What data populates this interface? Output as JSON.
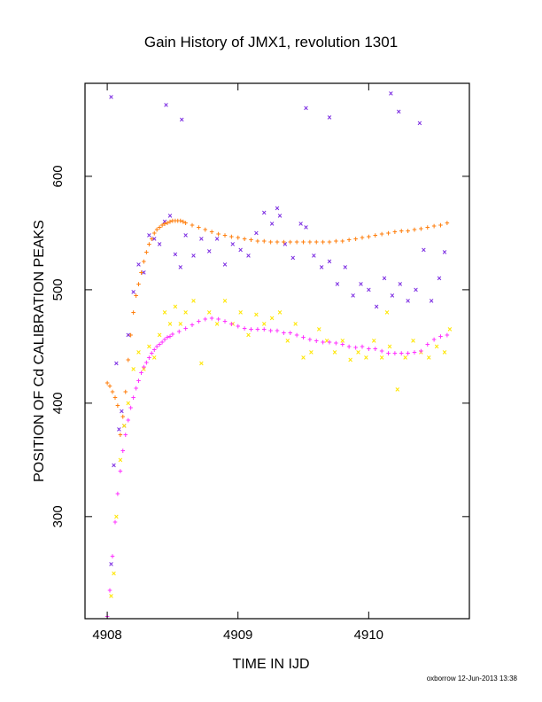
{
  "chart_data": {
    "type": "scatter",
    "title": "Gain History of JMX1, revolution 1301",
    "xlabel": "TIME IN IJD",
    "ylabel": "POSITION OF Cd CALIBRATION PEAKS",
    "xlim": [
      4907.83,
      4910.77
    ],
    "ylim": [
      210,
      682
    ],
    "xticks": [
      4908,
      4909,
      4910
    ],
    "xtick_labels": [
      "4908",
      "4909",
      "4910"
    ],
    "yticks": [
      300,
      400,
      500,
      600
    ],
    "ytick_labels": [
      "300",
      "400",
      "500",
      "600"
    ],
    "grid": false,
    "legend": "none",
    "credit": "oxborrow 12-Jun-2013 13:38",
    "series": [
      {
        "marker": "x",
        "color": "#7b2be2",
        "x": [
          4908.03,
          4908.05,
          4908.07,
          4908.09,
          4908.11,
          4908.13,
          4908.16,
          4908.2,
          4908.24,
          4908.28,
          4908.32,
          4908.36,
          4908.4,
          4908.44,
          4908.48,
          4908.52,
          4908.56,
          4908.6,
          4908.66,
          4908.72,
          4908.78,
          4908.84,
          4908.9,
          4908.96,
          4909.02,
          4909.08,
          4909.14,
          4909.2,
          4909.26,
          4909.3,
          4909.32,
          4909.36,
          4909.42,
          4909.48,
          4909.52,
          4909.58,
          4909.64,
          4909.7,
          4909.76,
          4909.82,
          4909.88,
          4909.94,
          4910.0,
          4910.06,
          4910.12,
          4910.18,
          4910.24,
          4910.3,
          4910.36,
          4910.42,
          4910.48,
          4910.54,
          4910.58,
          4908.03,
          4908.45,
          4908.57,
          4909.52,
          4909.7,
          4910.23,
          4910.17,
          4910.39
        ],
        "y": [
          258,
          345,
          435,
          377,
          393,
          380,
          460,
          498,
          522,
          515,
          548,
          545,
          540,
          560,
          565,
          531,
          520,
          548,
          530,
          545,
          534,
          545,
          522,
          540,
          535,
          530,
          550,
          568,
          558,
          572,
          565,
          540,
          528,
          558,
          555,
          530,
          520,
          525,
          505,
          520,
          495,
          505,
          500,
          485,
          510,
          495,
          505,
          490,
          500,
          535,
          490,
          510,
          533,
          670,
          663,
          650,
          660,
          652,
          657,
          673,
          647
        ]
      },
      {
        "marker": "x",
        "color": "#ffe600",
        "x": [
          4908.03,
          4908.05,
          4908.07,
          4908.1,
          4908.13,
          4908.16,
          4908.2,
          4908.24,
          4908.28,
          4908.32,
          4908.36,
          4908.4,
          4908.44,
          4908.48,
          4908.52,
          4908.56,
          4908.6,
          4908.66,
          4908.72,
          4908.78,
          4908.84,
          4908.9,
          4908.96,
          4909.02,
          4909.08,
          4909.14,
          4909.2,
          4909.26,
          4909.32,
          4909.38,
          4909.44,
          4909.5,
          4909.56,
          4909.62,
          4909.68,
          4909.74,
          4909.8,
          4909.86,
          4909.92,
          4909.98,
          4910.04,
          4910.1,
          4910.16,
          4910.22,
          4910.28,
          4910.34,
          4910.4,
          4910.46,
          4910.52,
          4910.58,
          4910.62,
          4910.14
        ],
        "y": [
          230,
          250,
          300,
          350,
          380,
          400,
          430,
          445,
          430,
          450,
          440,
          460,
          480,
          470,
          485,
          470,
          480,
          490,
          435,
          480,
          470,
          490,
          470,
          480,
          460,
          478,
          470,
          475,
          480,
          455,
          470,
          440,
          445,
          465,
          455,
          445,
          455,
          438,
          445,
          440,
          455,
          440,
          450,
          412,
          440,
          455,
          445,
          440,
          450,
          445,
          465,
          480
        ]
      },
      {
        "marker": "+",
        "color": "#ff7f0e",
        "x": [
          4908.0,
          4908.02,
          4908.04,
          4908.06,
          4908.08,
          4908.1,
          4908.12,
          4908.14,
          4908.16,
          4908.18,
          4908.2,
          4908.22,
          4908.24,
          4908.26,
          4908.28,
          4908.3,
          4908.32,
          4908.34,
          4908.36,
          4908.38,
          4908.4,
          4908.42,
          4908.44,
          4908.46,
          4908.48,
          4908.5,
          4908.52,
          4908.54,
          4908.56,
          4908.58,
          4908.6,
          4908.65,
          4908.7,
          4908.75,
          4908.8,
          4908.85,
          4908.9,
          4908.95,
          4909.0,
          4909.05,
          4909.1,
          4909.15,
          4909.2,
          4909.25,
          4909.3,
          4909.35,
          4909.4,
          4909.45,
          4909.5,
          4909.55,
          4909.6,
          4909.65,
          4909.7,
          4909.75,
          4909.8,
          4909.85,
          4909.9,
          4909.95,
          4910.0,
          4910.05,
          4910.1,
          4910.15,
          4910.2,
          4910.25,
          4910.3,
          4910.35,
          4910.4,
          4910.45,
          4910.5,
          4910.55,
          4910.6
        ],
        "y": [
          418,
          415,
          410,
          405,
          398,
          372,
          388,
          410,
          438,
          460,
          480,
          495,
          505,
          515,
          525,
          533,
          540,
          545,
          550,
          553,
          555,
          557,
          558,
          559,
          560,
          561,
          561,
          561,
          561,
          560,
          559,
          557,
          555,
          553,
          551,
          549,
          548,
          547,
          546,
          545,
          544,
          543,
          543,
          542,
          542,
          542,
          542,
          542,
          542,
          542,
          542,
          542,
          542,
          543,
          543,
          544,
          545,
          546,
          547,
          548,
          549,
          550,
          551,
          552,
          552,
          553,
          554,
          555,
          556,
          557,
          559
        ]
      },
      {
        "marker": "+",
        "color": "#ff33ff",
        "x": [
          4908.0,
          4908.02,
          4908.04,
          4908.06,
          4908.08,
          4908.1,
          4908.12,
          4908.14,
          4908.16,
          4908.18,
          4908.2,
          4908.22,
          4908.24,
          4908.26,
          4908.28,
          4908.3,
          4908.32,
          4908.34,
          4908.36,
          4908.38,
          4908.4,
          4908.42,
          4908.44,
          4908.46,
          4908.48,
          4908.5,
          4908.55,
          4908.6,
          4908.65,
          4908.7,
          4908.75,
          4908.8,
          4908.85,
          4908.9,
          4908.95,
          4909.0,
          4909.05,
          4909.1,
          4909.15,
          4909.2,
          4909.25,
          4909.3,
          4909.35,
          4909.4,
          4909.45,
          4909.5,
          4909.55,
          4909.6,
          4909.65,
          4909.7,
          4909.75,
          4909.8,
          4909.85,
          4909.9,
          4909.95,
          4910.0,
          4910.05,
          4910.1,
          4910.15,
          4910.2,
          4910.25,
          4910.3,
          4910.35,
          4910.4,
          4910.45,
          4910.5,
          4910.55,
          4910.6
        ],
        "y": [
          212,
          235,
          265,
          295,
          320,
          340,
          358,
          372,
          385,
          396,
          405,
          413,
          420,
          427,
          432,
          436,
          440,
          444,
          447,
          450,
          452,
          454,
          456,
          458,
          459,
          461,
          463,
          466,
          469,
          472,
          474,
          475,
          474,
          472,
          470,
          468,
          466,
          465,
          465,
          465,
          464,
          464,
          462,
          462,
          460,
          458,
          456,
          455,
          454,
          454,
          453,
          452,
          450,
          449,
          450,
          448,
          448,
          446,
          444,
          444,
          444,
          444,
          445,
          446,
          452,
          456,
          459,
          460
        ]
      }
    ]
  }
}
